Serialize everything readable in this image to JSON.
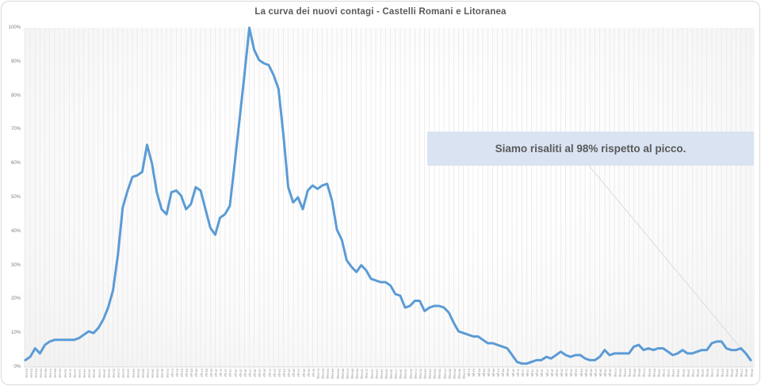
{
  "chart_data": {
    "type": "line",
    "title": "La curva dei nuovi contagi - Castelli Romani e Litoranea",
    "line_color": "#5B9BD5",
    "grid": "vertical-category-lines",
    "legend": "none",
    "ylim": [
      0,
      100
    ],
    "yticks": [
      "0%",
      "10%",
      "20%",
      "30%",
      "40%",
      "50%",
      "60%",
      "70%",
      "80%",
      "90%",
      "100%"
    ],
    "x": [
      "02-mar",
      "03-mar",
      "04-mar",
      "05-mar",
      "06-mar",
      "07-mar",
      "08-mar",
      "09-mar",
      "10-mar",
      "11-mar",
      "12-mar",
      "13-mar",
      "14-mar",
      "15-mar",
      "16-mar",
      "17-mar",
      "18-mar",
      "19-mar",
      "20-mar",
      "21-mar",
      "22-mar",
      "23-mar",
      "24-mar",
      "25-mar",
      "26-mar",
      "27-mar",
      "28-mar",
      "29-mar",
      "30-mar",
      "31-mar",
      "01-apr",
      "02-apr",
      "03-apr",
      "04-apr",
      "05-apr",
      "06-apr",
      "07-apr",
      "08-apr",
      "09-apr",
      "10-apr",
      "11-apr",
      "12-apr",
      "13-apr",
      "14-apr",
      "15-apr",
      "16-apr",
      "17-apr",
      "18-apr",
      "19-apr",
      "20-apr",
      "21-apr",
      "22-apr",
      "23-apr",
      "24-apr",
      "25-apr",
      "26-apr",
      "27-apr",
      "28-apr",
      "29-apr",
      "30-apr",
      "01-mag",
      "02-mag",
      "03-mag",
      "04-mag",
      "05-mag",
      "06-mag",
      "07-mag",
      "08-mag",
      "09-mag",
      "10-mag",
      "11-mag",
      "12-mag",
      "13-mag",
      "14-mag",
      "15-mag",
      "16-mag",
      "17-mag",
      "18-mag",
      "19-mag",
      "20-mag",
      "21-mag",
      "22-mag",
      "23-mag",
      "24-mag",
      "25-mag",
      "26-mag",
      "27-mag",
      "28-mag",
      "29-mag",
      "30-mag",
      "31-mag",
      "01-giu",
      "02-giu",
      "03-giu",
      "04-giu",
      "05-giu",
      "06-giu",
      "07-giu",
      "08-giu",
      "09-giu",
      "10-giu",
      "11-giu",
      "12-giu",
      "13-giu",
      "14-giu",
      "15-giu",
      "16-giu",
      "17-giu",
      "18-giu",
      "19-giu",
      "20-giu",
      "21-giu",
      "22-giu",
      "23-giu",
      "24-giu",
      "25-giu",
      "26-giu",
      "27-giu",
      "28-giu",
      "29-giu",
      "30-giu",
      "01-lug",
      "02-lug",
      "03-lug",
      "04-lug",
      "05-lug",
      "06-lug",
      "07-lug",
      "08-lug",
      "09-lug",
      "10-lug",
      "11-lug",
      "12-lug",
      "13-lug",
      "14-lug",
      "15-lug",
      "16-lug",
      "17-lug",
      "18-lug",
      "19-lug",
      "20-lug",
      "21-lug",
      "22-lug",
      "23-lug",
      "24-lug",
      "25-lug",
      "26-lug",
      "27-lug",
      "28-lug",
      "29-lug"
    ],
    "values": [
      2,
      3,
      5.5,
      4,
      6.5,
      7.5,
      8,
      8,
      8,
      8,
      8,
      8.5,
      9.5,
      10.5,
      10,
      11.5,
      14,
      17.5,
      22.5,
      33,
      47,
      52,
      56,
      56.5,
      57.5,
      65.5,
      60,
      51.5,
      46.5,
      45,
      51.5,
      52,
      50.5,
      46.5,
      48,
      53,
      52,
      46.5,
      41,
      39,
      44,
      45,
      47.5,
      60,
      73,
      86,
      100,
      93.5,
      90.5,
      89.5,
      89,
      86,
      82,
      68.5,
      53,
      48.5,
      50,
      46.5,
      52,
      53.5,
      52.5,
      53.5,
      54,
      49,
      40.5,
      37.5,
      31.5,
      29.5,
      28,
      30,
      28.5,
      26,
      25.5,
      25,
      25,
      24,
      21.5,
      21,
      17.5,
      18,
      19.5,
      19.5,
      16.5,
      17.5,
      18,
      18,
      17.5,
      16,
      13,
      10.5,
      10,
      9.5,
      9,
      9,
      8,
      7,
      7,
      6.5,
      6,
      5.5,
      3.5,
      1.5,
      1,
      1,
      1.5,
      2,
      2,
      3,
      2.5,
      3.5,
      4.5,
      3.5,
      3,
      3.5,
      3.5,
      2.5,
      2,
      2,
      3,
      5,
      3.5,
      4,
      4,
      4,
      4,
      6,
      6.5,
      5,
      5.5,
      5,
      5.5,
      5.5,
      4.5,
      3.5,
      4,
      5,
      4,
      4,
      4.5,
      5,
      5,
      7,
      7.5,
      7.5,
      5.5,
      5,
      5,
      5.5,
      4,
      2
    ]
  },
  "annotation": {
    "text": "Siamo risaliti al 98% rispetto al picco.",
    "bg_color": "#dae3f2",
    "text_color": "#595959"
  },
  "colors": {
    "line": "#5B9BD5",
    "gridline": "#ececec",
    "axis": "#d9d9d9",
    "title_text": "#595959",
    "tick_text": "#7f7f7f",
    "leader_line": "#dcdcdc",
    "border": "#d9d9d9"
  }
}
